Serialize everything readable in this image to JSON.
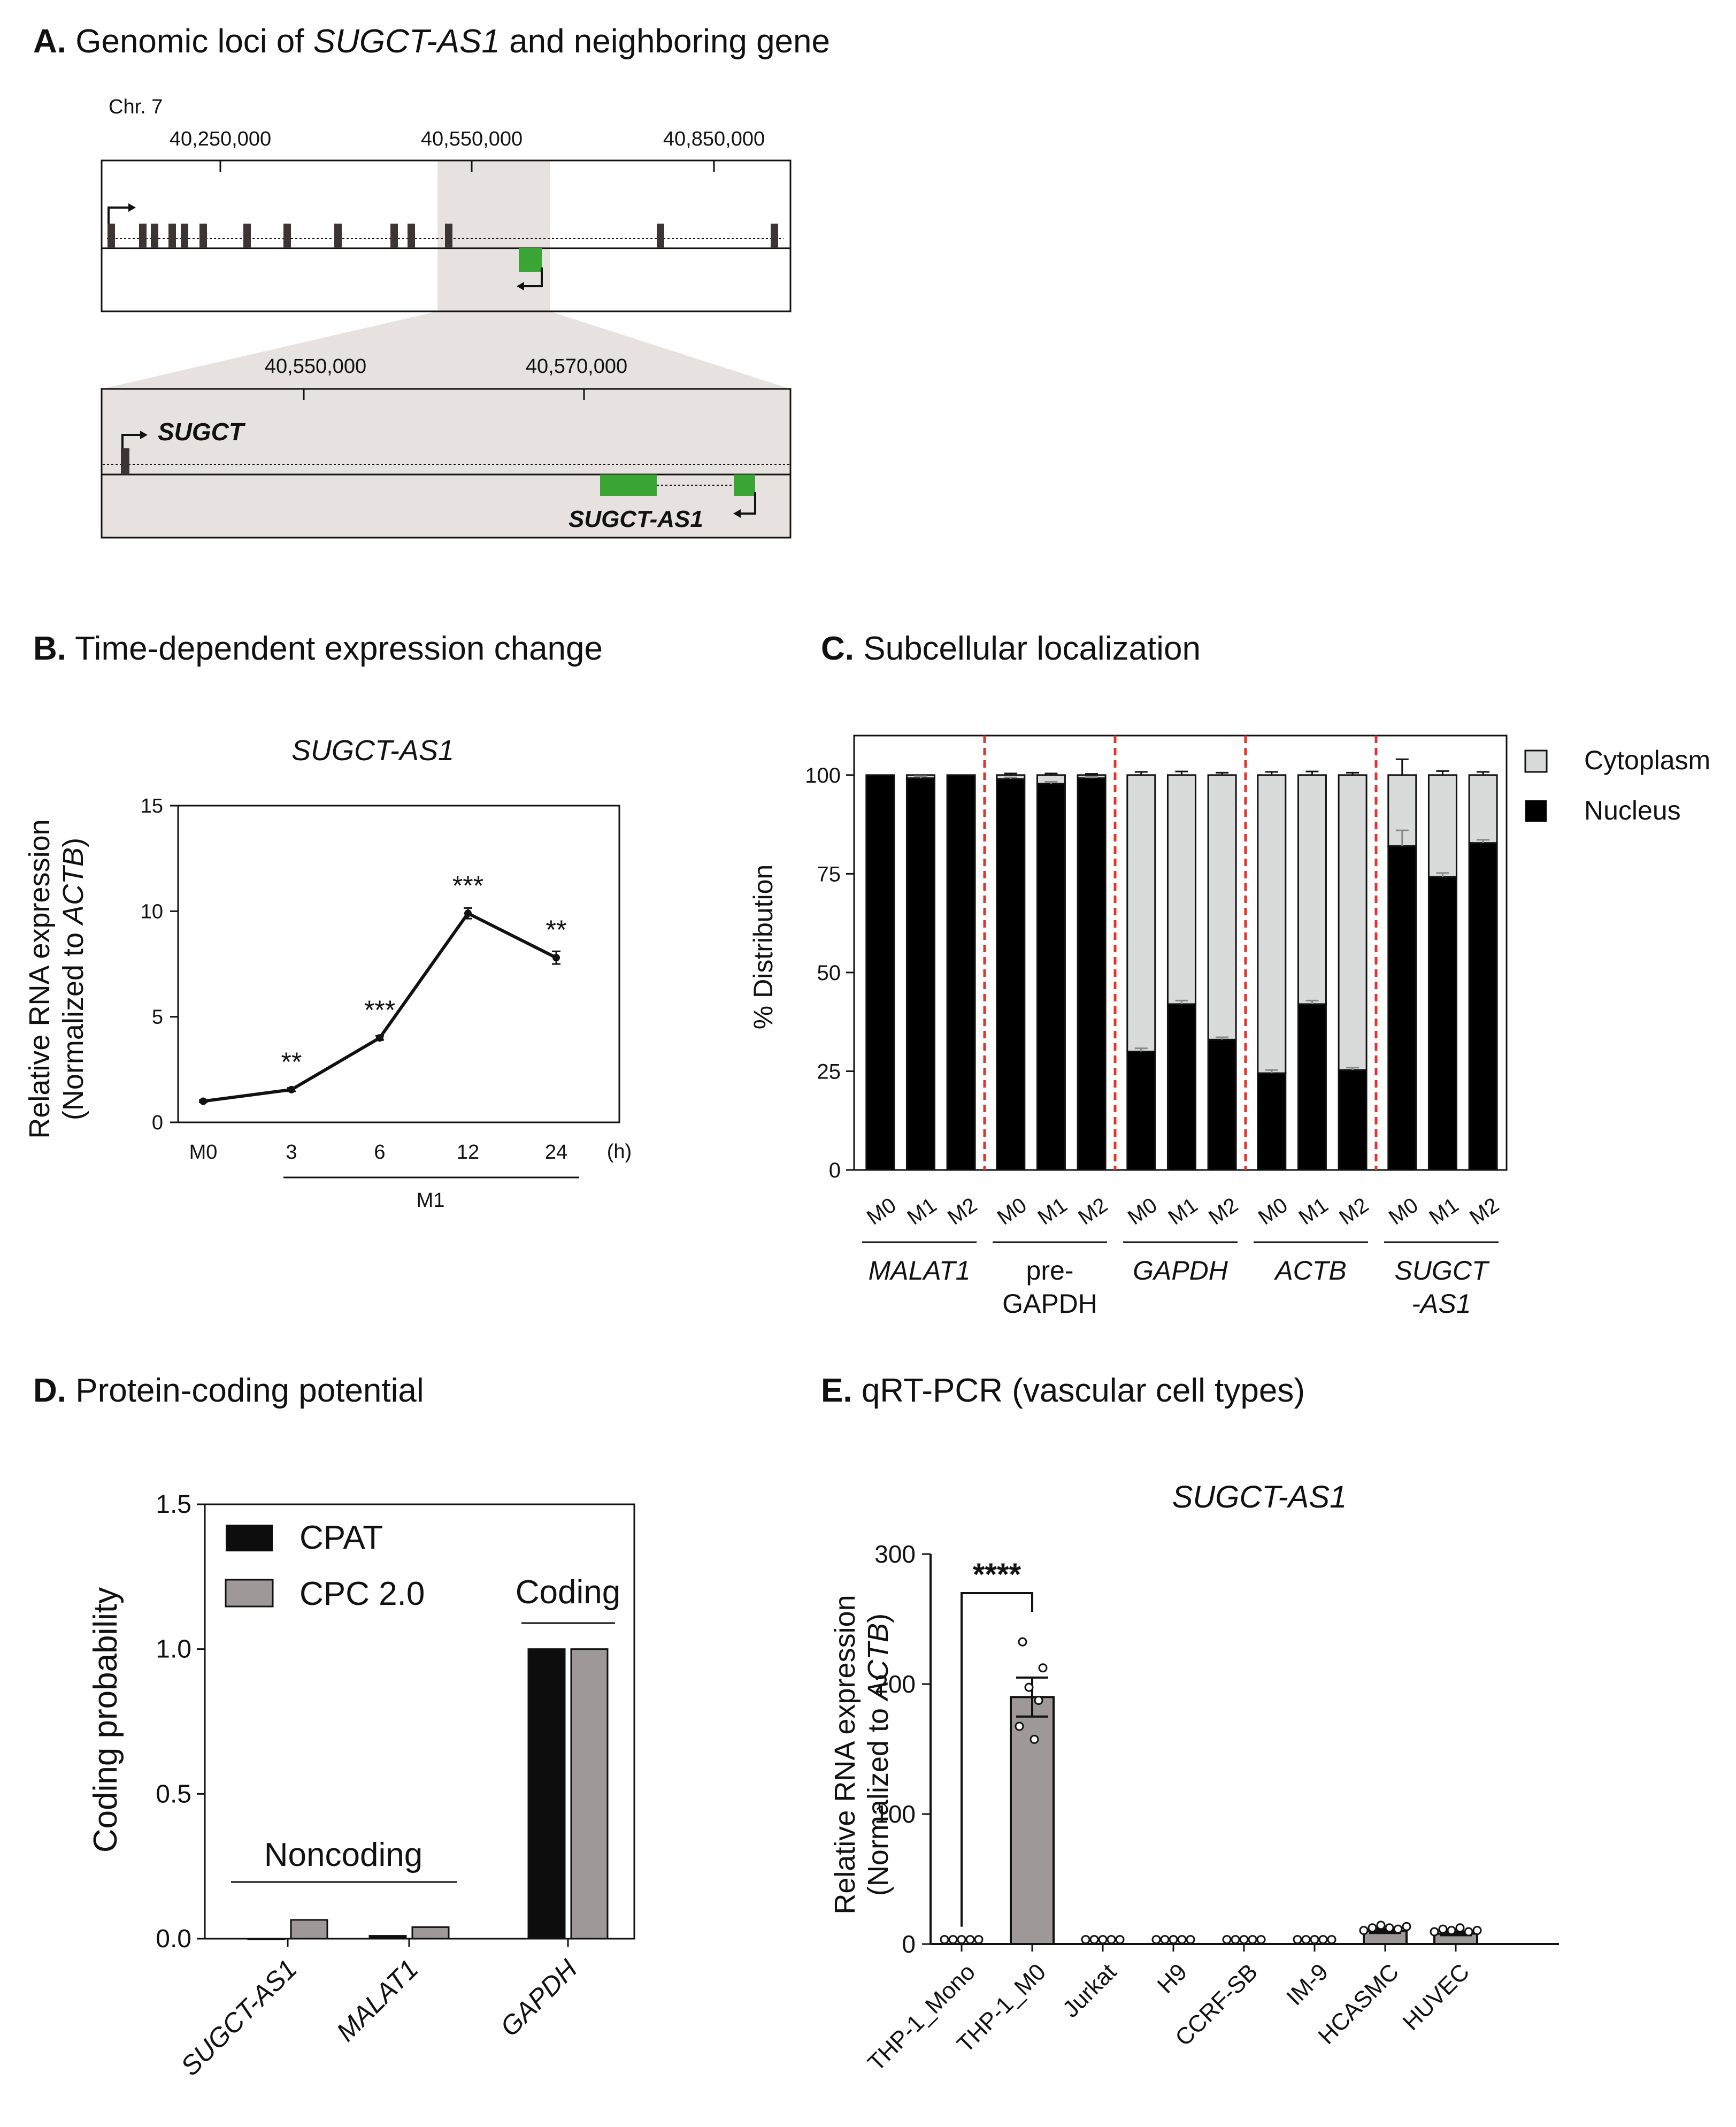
{
  "panels": {
    "A": {
      "letter": "A.",
      "title_pre": "Genomic loci of ",
      "title_gene": "SUGCT-AS1",
      "title_post": " and neighboring gene"
    },
    "B": {
      "letter": "B.",
      "title": "Time-dependent expression change"
    },
    "C": {
      "letter": "C.",
      "title": "Subcellular localization"
    },
    "D": {
      "letter": "D.",
      "title": "Protein-coding potential"
    },
    "E": {
      "letter": "E.",
      "title": "qRT-PCR (vascular cell types)"
    }
  },
  "genome": {
    "chr": "Chr. 7",
    "top_ticks": [
      "40,250,000",
      "40,550,000",
      "40,850,000"
    ],
    "zoom_ticks": [
      "40,550,000",
      "40,570,000"
    ],
    "gene_sugct": "SUGCT",
    "gene_as1": "SUGCT-AS1",
    "colors": {
      "exon": "#3d3533",
      "lnc_exon": "#3aa535",
      "shade": "#e7e2e0"
    }
  },
  "chart_data": [
    {
      "id": "B",
      "type": "line",
      "title": "SUGCT-AS1",
      "ylabel_line1": "Relative RNA expression",
      "ylabel_line2_pre": "(Normalized to ",
      "ylabel_line2_gene": "ACTB",
      "ylabel_line2_post": ")",
      "x": [
        "M0",
        "3",
        "6",
        "12",
        "24"
      ],
      "values": [
        1.0,
        1.55,
        4.0,
        9.9,
        7.8
      ],
      "errors": [
        0.05,
        0.08,
        0.1,
        0.25,
        0.3
      ],
      "significance": [
        "",
        "**",
        "***",
        "***",
        "**"
      ],
      "xunit": "(h)",
      "group_label": "M1",
      "ylim": [
        0,
        15
      ],
      "yticks": [
        "0",
        "5",
        "10",
        "15"
      ]
    },
    {
      "id": "C",
      "type": "bar",
      "stacked": true,
      "ylabel": "% Distribution",
      "ylim": [
        0,
        110
      ],
      "yticks": [
        "0",
        "25",
        "50",
        "75",
        "100"
      ],
      "legend": [
        "Cytoplasm",
        "Nucleus"
      ],
      "colors": {
        "cytoplasm": "#d9dbdb",
        "nucleus": "#000000",
        "divider": "#e8312a"
      },
      "groups": [
        {
          "label_lines": [
            "MALAT1"
          ],
          "italic": true,
          "samples": [
            "M0",
            "M1",
            "M2"
          ],
          "nucleus": [
            100,
            99.2,
            100
          ],
          "nuc_err": [
            0,
            0.5,
            0
          ],
          "cyto_err": [
            0,
            0,
            0
          ]
        },
        {
          "label_lines": [
            "pre-",
            "GAPDH"
          ],
          "italic": false,
          "samples": [
            "M0",
            "M1",
            "M2"
          ],
          "nucleus": [
            99,
            97.8,
            99.2
          ],
          "nuc_err": [
            0.4,
            0.5,
            0.3
          ],
          "cyto_err": [
            0.4,
            0.4,
            0.3
          ]
        },
        {
          "label_lines": [
            "GAPDH"
          ],
          "italic": true,
          "samples": [
            "M0",
            "M1",
            "M2"
          ],
          "nucleus": [
            30,
            42,
            33
          ],
          "nuc_err": [
            0.8,
            0.9,
            0.6
          ],
          "cyto_err": [
            0.8,
            0.9,
            0.6
          ]
        },
        {
          "label_lines": [
            "ACTB"
          ],
          "italic": true,
          "samples": [
            "M0",
            "M1",
            "M2"
          ],
          "nucleus": [
            24.5,
            42,
            25.3
          ],
          "nuc_err": [
            0.8,
            0.9,
            0.6
          ],
          "cyto_err": [
            0.8,
            0.9,
            0.6
          ]
        },
        {
          "label_lines": [
            "SUGCT",
            "-AS1"
          ],
          "italic": true,
          "samples": [
            "M0",
            "M1",
            "M2"
          ],
          "nucleus": [
            82,
            74.2,
            82.8
          ],
          "nuc_err": [
            4,
            1,
            0.8
          ],
          "cyto_err": [
            4,
            1,
            0.8
          ]
        }
      ]
    },
    {
      "id": "D",
      "type": "bar",
      "ylabel": "Coding probability",
      "ylim": [
        0,
        1.5
      ],
      "yticks": [
        "0.0",
        "0.5",
        "1.0",
        "1.5"
      ],
      "categories": [
        "SUGCT-AS1",
        "MALAT1",
        "GAPDH"
      ],
      "series": [
        {
          "name": "CPAT",
          "values": [
            0.0,
            0.01,
            1.0
          ],
          "color": "#0d0d0d"
        },
        {
          "name": "CPC 2.0",
          "values": [
            0.065,
            0.04,
            1.0
          ],
          "color": "#9e9898"
        }
      ],
      "annotations": {
        "noncoding": "Noncoding",
        "coding": "Coding"
      }
    },
    {
      "id": "E",
      "type": "bar",
      "title": "SUGCT-AS1",
      "ylabel_line1": "Relative RNA expression",
      "ylabel_line2_pre": "(Normalized to ",
      "ylabel_line2_gene": "ACTB",
      "ylabel_line2_post": ")",
      "ylim": [
        0,
        300
      ],
      "yticks": [
        "0",
        "100",
        "200",
        "300"
      ],
      "categories": [
        "THP-1_Mono",
        "THP-1_M0",
        "Jurkat",
        "H9",
        "CCRF-SB",
        "IM-9",
        "HCASMC",
        "HUVEC"
      ],
      "values": [
        1,
        190,
        1,
        1,
        1,
        1,
        10,
        8
      ],
      "errors": [
        0.3,
        15,
        0.3,
        0.3,
        0.3,
        0.3,
        1.5,
        1.2
      ],
      "points": [
        [
          1,
          1,
          1,
          1,
          1
        ],
        [
          165,
          185,
          195,
          210,
          230,
          155
        ],
        [
          1,
          1,
          1,
          1,
          1
        ],
        [
          1,
          1,
          1,
          1,
          1
        ],
        [
          1,
          1,
          1,
          1,
          1
        ],
        [
          1,
          1,
          1,
          1,
          1
        ],
        [
          8,
          10,
          12,
          10,
          9,
          11
        ],
        [
          7,
          9,
          8,
          10,
          7,
          8
        ]
      ],
      "significance": "****",
      "bar_color": "#9e9898"
    }
  ]
}
